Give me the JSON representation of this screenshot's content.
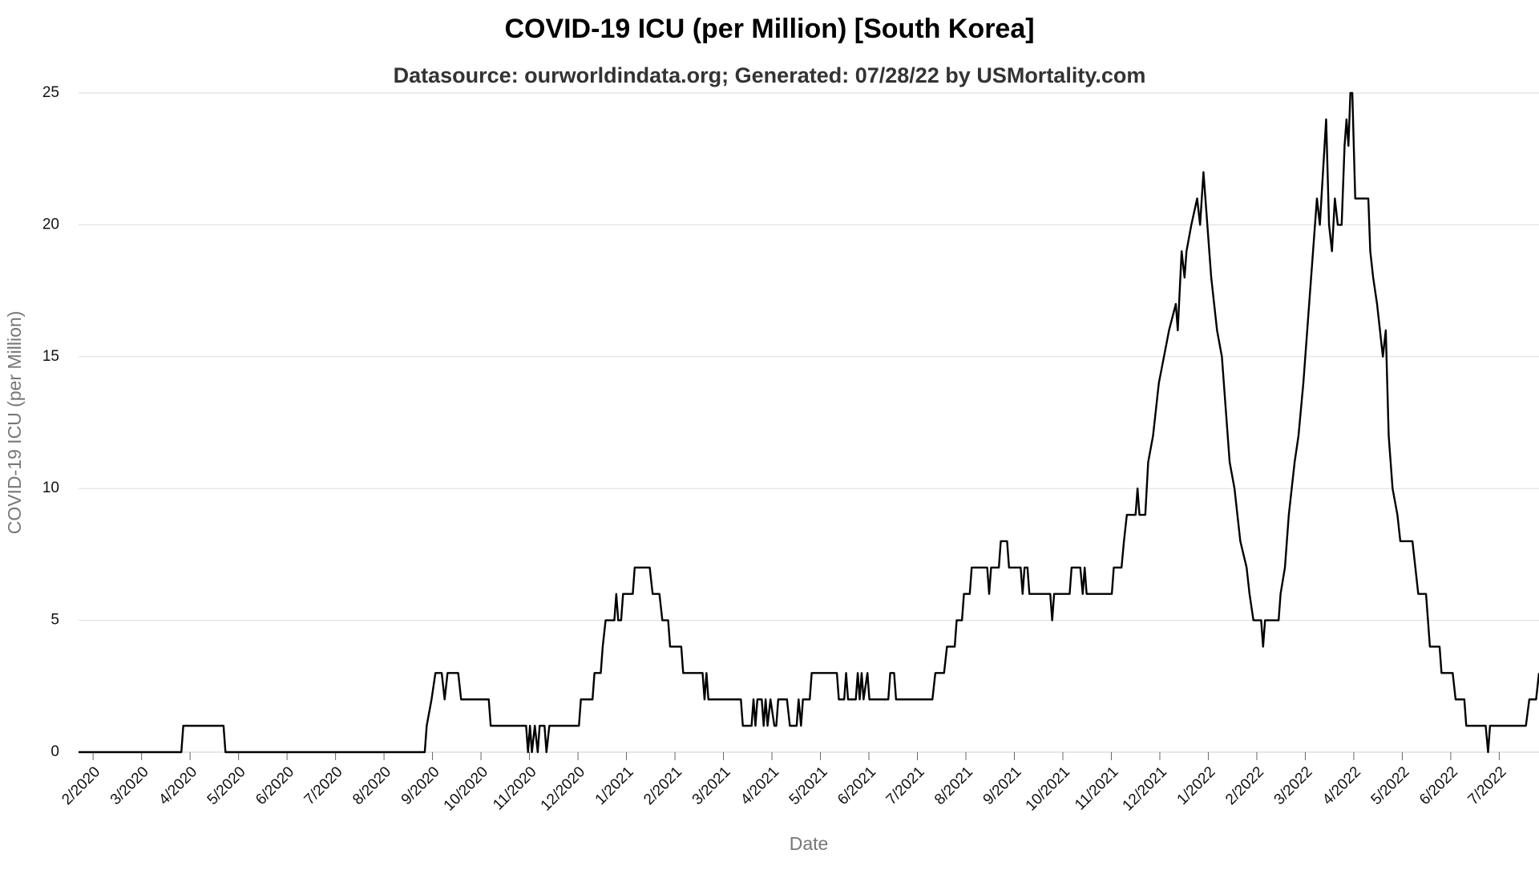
{
  "chart_data": {
    "type": "line",
    "title": "COVID-19 ICU (per Million) [South Korea]",
    "subtitle": "Datasource: ourworldindata.org; Generated: 07/28/22 by USMortality.com",
    "x_label": "Date",
    "y_label": "COVID-19 ICU (per Million)",
    "color": "#000000",
    "grid": true,
    "xlim": [
      0.7,
      30.82
    ],
    "ylim": [
      0,
      25
    ],
    "yticks": [
      0,
      5,
      10,
      15,
      20,
      25
    ],
    "xticks": [
      {
        "value": 1,
        "label": "2/2020"
      },
      {
        "value": 2,
        "label": "3/2020"
      },
      {
        "value": 3,
        "label": "4/2020"
      },
      {
        "value": 4,
        "label": "5/2020"
      },
      {
        "value": 5,
        "label": "6/2020"
      },
      {
        "value": 6,
        "label": "7/2020"
      },
      {
        "value": 7,
        "label": "8/2020"
      },
      {
        "value": 8,
        "label": "9/2020"
      },
      {
        "value": 9,
        "label": "10/2020"
      },
      {
        "value": 10,
        "label": "11/2020"
      },
      {
        "value": 11,
        "label": "12/2020"
      },
      {
        "value": 12,
        "label": "1/2021"
      },
      {
        "value": 13,
        "label": "2/2021"
      },
      {
        "value": 14,
        "label": "3/2021"
      },
      {
        "value": 15,
        "label": "4/2021"
      },
      {
        "value": 16,
        "label": "5/2021"
      },
      {
        "value": 17,
        "label": "6/2021"
      },
      {
        "value": 18,
        "label": "7/2021"
      },
      {
        "value": 19,
        "label": "8/2021"
      },
      {
        "value": 20,
        "label": "9/2021"
      },
      {
        "value": 21,
        "label": "10/2021"
      },
      {
        "value": 22,
        "label": "11/2021"
      },
      {
        "value": 23,
        "label": "12/2021"
      },
      {
        "value": 24,
        "label": "1/2022"
      },
      {
        "value": 25,
        "label": "2/2022"
      },
      {
        "value": 26,
        "label": "3/2022"
      },
      {
        "value": 27,
        "label": "4/2022"
      },
      {
        "value": 28,
        "label": "5/2022"
      },
      {
        "value": 29,
        "label": "6/2022"
      },
      {
        "value": 30,
        "label": "7/2022"
      }
    ],
    "x": [
      0.7,
      2.82,
      2.86,
      3.69,
      3.73,
      7.84,
      7.88,
      7.98,
      8.06,
      8.19,
      8.25,
      8.31,
      8.53,
      8.59,
      9.16,
      9.2,
      9.93,
      9.97,
      10.01,
      10.05,
      10.11,
      10.17,
      10.21,
      10.31,
      10.35,
      10.41,
      11.02,
      11.06,
      11.3,
      11.34,
      11.47,
      11.51,
      11.57,
      11.75,
      11.79,
      11.83,
      11.89,
      11.93,
      12.13,
      12.17,
      12.48,
      12.54,
      12.68,
      12.74,
      12.86,
      12.9,
      13.13,
      13.17,
      13.57,
      13.61,
      13.65,
      13.69,
      14.36,
      14.4,
      14.58,
      14.62,
      14.66,
      14.7,
      14.79,
      14.83,
      14.87,
      14.91,
      14.97,
      15.05,
      15.09,
      15.13,
      15.31,
      15.37,
      15.51,
      15.55,
      15.6,
      15.64,
      15.78,
      15.82,
      16.34,
      16.38,
      16.49,
      16.53,
      16.57,
      16.73,
      16.77,
      16.81,
      16.85,
      16.89,
      16.97,
      17.01,
      17.4,
      17.44,
      17.52,
      17.56,
      18.31,
      18.37,
      18.55,
      18.61,
      18.77,
      18.81,
      18.92,
      18.96,
      19.08,
      19.12,
      19.44,
      19.48,
      19.52,
      19.68,
      19.72,
      19.85,
      19.89,
      20.13,
      20.17,
      20.21,
      20.27,
      20.31,
      20.74,
      20.78,
      20.82,
      21.14,
      21.18,
      21.36,
      21.41,
      21.45,
      21.49,
      22.01,
      22.05,
      22.21,
      22.26,
      22.32,
      22.5,
      22.54,
      22.58,
      22.7,
      22.76,
      22.86,
      22.98,
      23.19,
      23.33,
      23.37,
      23.45,
      23.51,
      23.55,
      23.65,
      23.77,
      23.83,
      23.9,
      23.98,
      24.06,
      24.18,
      24.28,
      24.36,
      24.44,
      24.54,
      24.66,
      24.79,
      24.85,
      24.93,
      25.09,
      25.13,
      25.17,
      25.45,
      25.49,
      25.58,
      25.66,
      25.78,
      25.86,
      25.96,
      26.04,
      26.16,
      26.24,
      26.3,
      26.43,
      26.49,
      26.55,
      26.61,
      26.67,
      26.75,
      26.81,
      26.85,
      26.89,
      26.93,
      26.97,
      27.03,
      27.3,
      27.34,
      27.4,
      27.48,
      27.54,
      27.6,
      27.66,
      27.72,
      27.8,
      27.9,
      27.96,
      28.21,
      28.27,
      28.33,
      28.49,
      28.57,
      28.77,
      28.81,
      29.04,
      29.1,
      29.28,
      29.32,
      29.72,
      29.77,
      29.81,
      30.55,
      30.62,
      30.76,
      30.82
    ],
    "values": [
      0,
      0,
      1,
      1,
      0,
      0,
      1,
      2,
      3,
      3,
      2,
      3,
      3,
      2,
      2,
      1,
      1,
      0,
      1,
      0,
      1,
      0,
      1,
      1,
      0,
      1,
      1,
      2,
      2,
      3,
      3,
      4,
      5,
      5,
      6,
      5,
      5,
      6,
      6,
      7,
      7,
      6,
      6,
      5,
      5,
      4,
      4,
      3,
      3,
      2,
      3,
      2,
      2,
      1,
      1,
      2,
      1,
      2,
      2,
      1,
      2,
      1,
      2,
      1,
      1,
      2,
      2,
      1,
      1,
      2,
      1,
      2,
      2,
      3,
      3,
      2,
      2,
      3,
      2,
      2,
      3,
      2,
      3,
      2,
      3,
      2,
      2,
      3,
      3,
      2,
      2,
      3,
      3,
      4,
      4,
      5,
      5,
      6,
      6,
      7,
      7,
      6,
      7,
      7,
      8,
      8,
      7,
      7,
      6,
      7,
      7,
      6,
      6,
      5,
      6,
      6,
      7,
      7,
      6,
      7,
      6,
      6,
      7,
      7,
      8,
      9,
      9,
      10,
      9,
      9,
      11,
      12,
      14,
      16,
      17,
      16,
      19,
      18,
      19,
      20,
      21,
      20,
      22,
      20,
      18,
      16,
      15,
      13,
      11,
      10,
      8,
      7,
      6,
      5,
      5,
      4,
      5,
      5,
      6,
      7,
      9,
      11,
      12,
      14,
      16,
      19,
      21,
      20,
      24,
      20,
      19,
      21,
      20,
      20,
      23,
      24,
      23,
      25,
      25,
      21,
      21,
      19,
      18,
      17,
      16,
      15,
      16,
      12,
      10,
      9,
      8,
      8,
      7,
      6,
      6,
      4,
      4,
      3,
      3,
      2,
      2,
      1,
      1,
      0,
      1,
      1,
      2,
      2,
      3
    ]
  }
}
